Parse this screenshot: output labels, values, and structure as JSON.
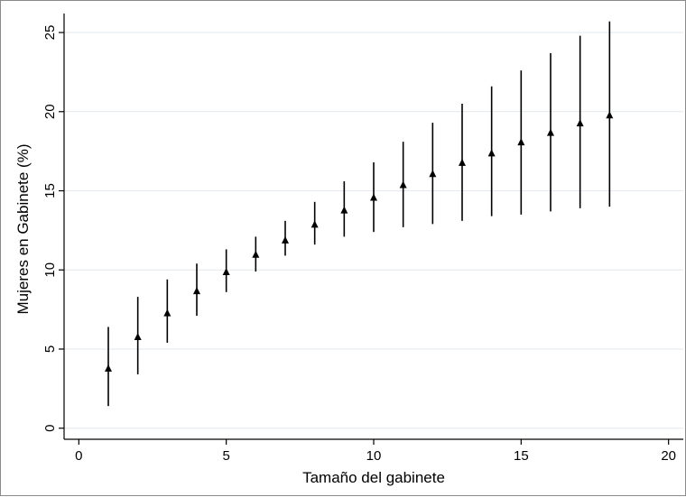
{
  "chart_data": {
    "type": "scatter",
    "title": "",
    "xlabel": "Tamaño del gabinete",
    "ylabel": "Mujeres en Gabinete (%)",
    "xlim": [
      -0.5,
      20.5
    ],
    "ylim": [
      -0.7,
      26.2
    ],
    "xticks": [
      0,
      5,
      10,
      15,
      20
    ],
    "yticks": [
      0,
      5,
      10,
      15,
      20,
      25
    ],
    "grid": "horizontal",
    "marker": "triangle",
    "series": [
      {
        "x": [
          1,
          2,
          3,
          4,
          5,
          6,
          7,
          8,
          9,
          10,
          11,
          12,
          13,
          14,
          15,
          16,
          17,
          18
        ],
        "y": [
          3.8,
          5.8,
          7.3,
          8.7,
          9.9,
          11.0,
          11.9,
          12.9,
          13.8,
          14.6,
          15.4,
          16.1,
          16.8,
          17.4,
          18.1,
          18.7,
          19.3,
          19.8
        ],
        "lower": [
          1.4,
          3.4,
          5.4,
          7.1,
          8.6,
          9.9,
          10.9,
          11.6,
          12.1,
          12.4,
          12.7,
          12.9,
          13.1,
          13.4,
          13.5,
          13.7,
          13.9,
          14.0
        ],
        "upper": [
          6.4,
          8.3,
          9.4,
          10.4,
          11.3,
          12.1,
          13.1,
          14.3,
          15.6,
          16.8,
          18.1,
          19.3,
          20.5,
          21.6,
          22.6,
          23.7,
          24.8,
          25.7
        ]
      }
    ]
  },
  "colors": {
    "mark": "#000000",
    "grid": "#e3e9ee",
    "axis": "#000000",
    "frame": "#8a8a8a"
  }
}
